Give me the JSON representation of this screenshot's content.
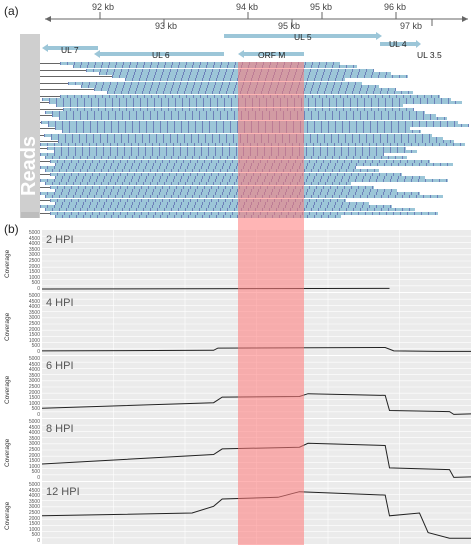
{
  "panel_a": {
    "label": "(a)",
    "scale_top": [
      "92 kb",
      "94 kb",
      "95 kb",
      "96 kb"
    ],
    "scale_bottom": [
      "93 kb",
      "95 kb",
      "97 kb"
    ],
    "genes": [
      {
        "name": "UL 5"
      },
      {
        "name": "UL 4"
      },
      {
        "name": "UL 7"
      },
      {
        "name": "UL 6"
      },
      {
        "name": "ORF M"
      },
      {
        "name": "UL 3.5"
      }
    ],
    "reads_label": "Reads",
    "reads_color": "#9cc6d8"
  },
  "panel_b": {
    "label": "(b)",
    "y_axis_label": "Coverage",
    "highlight_color": "#ff7a7a",
    "y_ticks": [
      "5000",
      "4500",
      "4000",
      "3500",
      "3000",
      "2500",
      "2000",
      "1500",
      "1000",
      "500",
      "0"
    ],
    "panels": [
      {
        "label": "2 HPI"
      },
      {
        "label": "4 HPI"
      },
      {
        "label": "6 HPI"
      },
      {
        "label": "8 HPI"
      },
      {
        "label": "12 HPI"
      }
    ]
  }
}
